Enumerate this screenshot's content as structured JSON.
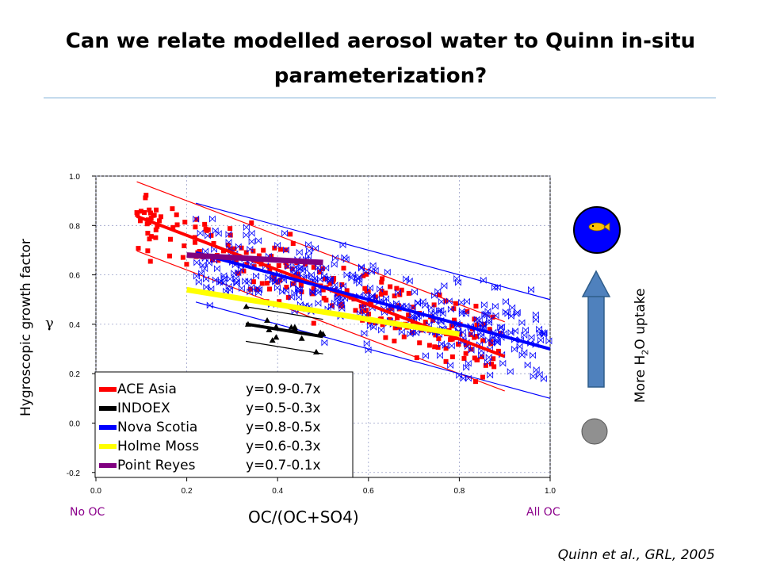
{
  "slide": {
    "title": "Can we relate modelled aerosol water to Quinn in-situ parameterization?",
    "citation": "Quinn et al., GRL, 2005",
    "uptake_text": "More H",
    "uptake_sub": "2",
    "uptake_tail": "O uptake",
    "gamma_symbol": "γ"
  },
  "chart_data": {
    "type": "scatter",
    "ylabel": "Hygroscopic growth factor",
    "xlabel": "OC/(OC+SO4)",
    "x_end_labels": {
      "left": "No OC",
      "right": "All OC"
    },
    "xlim": [
      0.0,
      1.0
    ],
    "ylim": [
      -0.22,
      1.0
    ],
    "xticks": [
      "0.0",
      "0.2",
      "0.4",
      "0.6",
      "0.8",
      "1.0"
    ],
    "yticks": [
      "-0.2",
      "0.0",
      "0.2",
      "0.4",
      "0.6",
      "0.8",
      "1.0"
    ],
    "grid": true,
    "legend_position": "bottom-left",
    "series": [
      {
        "name": "ACE Asia",
        "equation": "y=0.9-0.7x",
        "color": "#ff0000",
        "marker": "filled-square",
        "fit": {
          "intercept": 0.9,
          "slope": -0.7,
          "x": [
            0.09,
            0.9
          ]
        },
        "band": 0.14
      },
      {
        "name": "INDOEX",
        "equation": "y=0.5-0.3x",
        "color": "#000000",
        "marker": "filled-triangle",
        "fit": {
          "intercept": 0.5,
          "slope": -0.3,
          "x": [
            0.33,
            0.5
          ]
        },
        "band": 0.07
      },
      {
        "name": "Nova Scotia",
        "equation": "y=0.8-0.5x",
        "color": "#0000ff",
        "marker": "bowtie",
        "fit": {
          "intercept": 0.8,
          "slope": -0.5,
          "x": [
            0.22,
            1.0
          ]
        },
        "band": 0.2
      },
      {
        "name": "Holme Moss",
        "equation": "y=0.6-0.3x",
        "color": "#ffff00",
        "marker": "none",
        "fit": {
          "intercept": 0.6,
          "slope": -0.3,
          "x": [
            0.2,
            0.8
          ]
        },
        "band": 0
      },
      {
        "name": "Point Reyes",
        "equation": "y=0.7-0.1x",
        "color": "#800080",
        "marker": "none",
        "fit": {
          "intercept": 0.7,
          "slope": -0.1,
          "x": [
            0.2,
            0.5
          ]
        },
        "band": 0
      }
    ]
  }
}
